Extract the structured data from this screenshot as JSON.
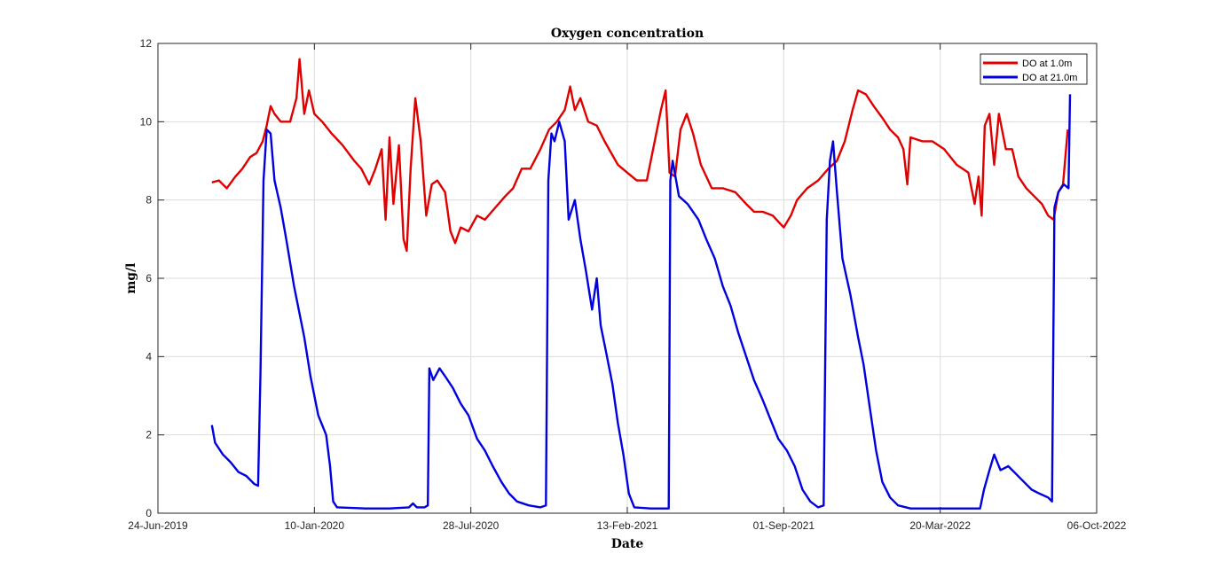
{
  "chart_data": {
    "type": "line",
    "title": "Oxygen concentration",
    "xlabel": "Date",
    "ylabel": "mg/l",
    "xlim": [
      "2019-06-24",
      "2022-10-06"
    ],
    "ylim": [
      0,
      12
    ],
    "x_ticks": [
      "24-Jun-2019",
      "10-Jan-2020",
      "28-Jul-2020",
      "13-Feb-2021",
      "01-Sep-2021",
      "20-Mar-2022",
      "06-Oct-2022"
    ],
    "y_ticks": [
      0,
      2,
      4,
      6,
      8,
      10,
      12
    ],
    "grid": true,
    "legend_position": "top-right",
    "series": [
      {
        "name": "DO at 1.0m",
        "color": "#e00000",
        "points": [
          [
            "2019-09-01",
            8.45
          ],
          [
            "2019-09-10",
            8.5
          ],
          [
            "2019-09-20",
            8.3
          ],
          [
            "2019-10-01",
            8.6
          ],
          [
            "2019-10-10",
            8.8
          ],
          [
            "2019-10-20",
            9.1
          ],
          [
            "2019-10-28",
            9.2
          ],
          [
            "2019-11-05",
            9.5
          ],
          [
            "2019-11-10",
            9.9
          ],
          [
            "2019-11-15",
            10.4
          ],
          [
            "2019-11-20",
            10.2
          ],
          [
            "2019-11-28",
            10.0
          ],
          [
            "2019-12-10",
            10.0
          ],
          [
            "2019-12-18",
            10.6
          ],
          [
            "2019-12-22",
            11.6
          ],
          [
            "2019-12-28",
            10.2
          ],
          [
            "2020-01-03",
            10.8
          ],
          [
            "2020-01-10",
            10.2
          ],
          [
            "2020-01-20",
            10.0
          ],
          [
            "2020-02-01",
            9.7
          ],
          [
            "2020-02-15",
            9.4
          ],
          [
            "2020-03-01",
            9.0
          ],
          [
            "2020-03-10",
            8.8
          ],
          [
            "2020-03-20",
            8.4
          ],
          [
            "2020-03-28",
            8.8
          ],
          [
            "2020-04-05",
            9.3
          ],
          [
            "2020-04-10",
            7.5
          ],
          [
            "2020-04-15",
            9.6
          ],
          [
            "2020-04-20",
            7.9
          ],
          [
            "2020-04-27",
            9.4
          ],
          [
            "2020-05-03",
            7.0
          ],
          [
            "2020-05-07",
            6.7
          ],
          [
            "2020-05-12",
            8.8
          ],
          [
            "2020-05-18",
            10.6
          ],
          [
            "2020-05-25",
            9.5
          ],
          [
            "2020-06-01",
            7.6
          ],
          [
            "2020-06-08",
            8.4
          ],
          [
            "2020-06-15",
            8.5
          ],
          [
            "2020-06-25",
            8.2
          ],
          [
            "2020-07-02",
            7.2
          ],
          [
            "2020-07-08",
            6.9
          ],
          [
            "2020-07-15",
            7.3
          ],
          [
            "2020-07-25",
            7.2
          ],
          [
            "2020-08-05",
            7.6
          ],
          [
            "2020-08-15",
            7.5
          ],
          [
            "2020-08-28",
            7.8
          ],
          [
            "2020-09-10",
            8.1
          ],
          [
            "2020-09-20",
            8.3
          ],
          [
            "2020-10-01",
            8.8
          ],
          [
            "2020-10-12",
            8.8
          ],
          [
            "2020-10-25",
            9.3
          ],
          [
            "2020-11-05",
            9.8
          ],
          [
            "2020-11-15",
            10.0
          ],
          [
            "2020-11-25",
            10.3
          ],
          [
            "2020-12-02",
            10.9
          ],
          [
            "2020-12-08",
            10.3
          ],
          [
            "2020-12-15",
            10.6
          ],
          [
            "2020-12-25",
            10.0
          ],
          [
            "2021-01-05",
            9.9
          ],
          [
            "2021-01-15",
            9.5
          ],
          [
            "2021-02-01",
            8.9
          ],
          [
            "2021-02-13",
            8.7
          ],
          [
            "2021-02-25",
            8.5
          ],
          [
            "2021-03-10",
            8.5
          ],
          [
            "2021-03-20",
            9.5
          ],
          [
            "2021-03-28",
            10.3
          ],
          [
            "2021-04-03",
            10.8
          ],
          [
            "2021-04-08",
            8.7
          ],
          [
            "2021-04-15",
            8.6
          ],
          [
            "2021-04-22",
            9.8
          ],
          [
            "2021-04-30",
            10.2
          ],
          [
            "2021-05-08",
            9.7
          ],
          [
            "2021-05-18",
            8.9
          ],
          [
            "2021-06-01",
            8.3
          ],
          [
            "2021-06-15",
            8.3
          ],
          [
            "2021-07-01",
            8.2
          ],
          [
            "2021-07-15",
            7.9
          ],
          [
            "2021-07-25",
            7.7
          ],
          [
            "2021-08-05",
            7.7
          ],
          [
            "2021-08-18",
            7.6
          ],
          [
            "2021-09-01",
            7.3
          ],
          [
            "2021-09-10",
            7.6
          ],
          [
            "2021-09-18",
            8.0
          ],
          [
            "2021-10-01",
            8.3
          ],
          [
            "2021-10-15",
            8.5
          ],
          [
            "2021-10-28",
            8.8
          ],
          [
            "2021-11-08",
            9.0
          ],
          [
            "2021-11-18",
            9.5
          ],
          [
            "2021-11-28",
            10.3
          ],
          [
            "2021-12-05",
            10.8
          ],
          [
            "2021-12-15",
            10.7
          ],
          [
            "2021-12-25",
            10.4
          ],
          [
            "2022-01-05",
            10.1
          ],
          [
            "2022-01-15",
            9.8
          ],
          [
            "2022-01-25",
            9.6
          ],
          [
            "2022-02-01",
            9.3
          ],
          [
            "2022-02-06",
            8.4
          ],
          [
            "2022-02-10",
            9.6
          ],
          [
            "2022-02-25",
            9.5
          ],
          [
            "2022-03-10",
            9.5
          ],
          [
            "2022-03-25",
            9.3
          ],
          [
            "2022-04-10",
            8.9
          ],
          [
            "2022-04-25",
            8.7
          ],
          [
            "2022-05-03",
            7.9
          ],
          [
            "2022-05-08",
            8.6
          ],
          [
            "2022-05-12",
            7.6
          ],
          [
            "2022-05-16",
            9.9
          ],
          [
            "2022-05-22",
            10.2
          ],
          [
            "2022-05-28",
            8.9
          ],
          [
            "2022-06-03",
            10.2
          ],
          [
            "2022-06-12",
            9.3
          ],
          [
            "2022-06-20",
            9.3
          ],
          [
            "2022-06-28",
            8.6
          ],
          [
            "2022-07-08",
            8.3
          ],
          [
            "2022-07-18",
            8.1
          ],
          [
            "2022-07-28",
            7.9
          ],
          [
            "2022-08-05",
            7.6
          ],
          [
            "2022-08-12",
            7.5
          ],
          [
            "2022-08-18",
            8.2
          ],
          [
            "2022-08-24",
            8.4
          ],
          [
            "2022-08-30",
            9.8
          ]
        ]
      },
      {
        "name": "DO at 21.0m",
        "color": "#0000e0",
        "points": [
          [
            "2019-09-01",
            2.25
          ],
          [
            "2019-09-05",
            1.8
          ],
          [
            "2019-09-15",
            1.5
          ],
          [
            "2019-09-25",
            1.3
          ],
          [
            "2019-10-05",
            1.05
          ],
          [
            "2019-10-15",
            0.95
          ],
          [
            "2019-10-25",
            0.75
          ],
          [
            "2019-10-30",
            0.7
          ],
          [
            "2019-11-02",
            3.5
          ],
          [
            "2019-11-06",
            8.5
          ],
          [
            "2019-11-10",
            9.8
          ],
          [
            "2019-11-15",
            9.7
          ],
          [
            "2019-11-20",
            8.5
          ],
          [
            "2019-11-28",
            7.8
          ],
          [
            "2019-12-05",
            7.0
          ],
          [
            "2019-12-15",
            5.8
          ],
          [
            "2019-12-28",
            4.5
          ],
          [
            "2020-01-05",
            3.5
          ],
          [
            "2020-01-15",
            2.5
          ],
          [
            "2020-01-25",
            2.0
          ],
          [
            "2020-01-30",
            1.2
          ],
          [
            "2020-02-03",
            0.3
          ],
          [
            "2020-02-08",
            0.15
          ],
          [
            "2020-03-15",
            0.12
          ],
          [
            "2020-04-15",
            0.12
          ],
          [
            "2020-05-10",
            0.15
          ],
          [
            "2020-05-15",
            0.25
          ],
          [
            "2020-05-20",
            0.15
          ],
          [
            "2020-05-30",
            0.15
          ],
          [
            "2020-06-03",
            0.2
          ],
          [
            "2020-06-05",
            3.7
          ],
          [
            "2020-06-10",
            3.4
          ],
          [
            "2020-06-18",
            3.7
          ],
          [
            "2020-06-25",
            3.5
          ],
          [
            "2020-07-05",
            3.2
          ],
          [
            "2020-07-15",
            2.8
          ],
          [
            "2020-07-25",
            2.5
          ],
          [
            "2020-08-05",
            1.9
          ],
          [
            "2020-08-15",
            1.6
          ],
          [
            "2020-08-25",
            1.2
          ],
          [
            "2020-09-05",
            0.8
          ],
          [
            "2020-09-15",
            0.5
          ],
          [
            "2020-09-25",
            0.3
          ],
          [
            "2020-10-10",
            0.2
          ],
          [
            "2020-10-25",
            0.15
          ],
          [
            "2020-11-01",
            0.2
          ],
          [
            "2020-11-04",
            8.5
          ],
          [
            "2020-11-08",
            9.7
          ],
          [
            "2020-11-12",
            9.5
          ],
          [
            "2020-11-18",
            10.0
          ],
          [
            "2020-11-25",
            9.5
          ],
          [
            "2020-11-30",
            7.5
          ],
          [
            "2020-12-08",
            8.0
          ],
          [
            "2020-12-15",
            7.0
          ],
          [
            "2020-12-22",
            6.2
          ],
          [
            "2020-12-30",
            5.2
          ],
          [
            "2021-01-05",
            6.0
          ],
          [
            "2021-01-10",
            4.8
          ],
          [
            "2021-01-18",
            4.0
          ],
          [
            "2021-01-25",
            3.3
          ],
          [
            "2021-02-01",
            2.3
          ],
          [
            "2021-02-08",
            1.5
          ],
          [
            "2021-02-15",
            0.5
          ],
          [
            "2021-02-22",
            0.15
          ],
          [
            "2021-03-15",
            0.12
          ],
          [
            "2021-04-07",
            0.12
          ],
          [
            "2021-04-09",
            8.5
          ],
          [
            "2021-04-12",
            9.0
          ],
          [
            "2021-04-20",
            8.1
          ],
          [
            "2021-05-01",
            7.9
          ],
          [
            "2021-05-15",
            7.5
          ],
          [
            "2021-05-25",
            7.0
          ],
          [
            "2021-06-05",
            6.5
          ],
          [
            "2021-06-15",
            5.8
          ],
          [
            "2021-06-25",
            5.3
          ],
          [
            "2021-07-05",
            4.6
          ],
          [
            "2021-07-15",
            4.0
          ],
          [
            "2021-07-25",
            3.4
          ],
          [
            "2021-08-05",
            2.9
          ],
          [
            "2021-08-15",
            2.4
          ],
          [
            "2021-08-25",
            1.9
          ],
          [
            "2021-09-05",
            1.6
          ],
          [
            "2021-09-15",
            1.2
          ],
          [
            "2021-09-25",
            0.6
          ],
          [
            "2021-10-05",
            0.3
          ],
          [
            "2021-10-15",
            0.15
          ],
          [
            "2021-10-22",
            0.2
          ],
          [
            "2021-10-26",
            7.5
          ],
          [
            "2021-10-30",
            9.0
          ],
          [
            "2021-11-03",
            9.5
          ],
          [
            "2021-11-08",
            8.2
          ],
          [
            "2021-11-15",
            6.5
          ],
          [
            "2021-11-25",
            5.6
          ],
          [
            "2021-12-05",
            4.5
          ],
          [
            "2021-12-12",
            3.8
          ],
          [
            "2021-12-20",
            2.7
          ],
          [
            "2021-12-28",
            1.6
          ],
          [
            "2022-01-05",
            0.8
          ],
          [
            "2022-01-15",
            0.4
          ],
          [
            "2022-01-25",
            0.2
          ],
          [
            "2022-02-10",
            0.12
          ],
          [
            "2022-03-15",
            0.12
          ],
          [
            "2022-04-15",
            0.12
          ],
          [
            "2022-05-10",
            0.12
          ],
          [
            "2022-05-15",
            0.6
          ],
          [
            "2022-05-22",
            1.1
          ],
          [
            "2022-05-28",
            1.5
          ],
          [
            "2022-06-05",
            1.1
          ],
          [
            "2022-06-15",
            1.2
          ],
          [
            "2022-06-25",
            1.0
          ],
          [
            "2022-07-05",
            0.8
          ],
          [
            "2022-07-15",
            0.6
          ],
          [
            "2022-07-25",
            0.5
          ],
          [
            "2022-08-05",
            0.4
          ],
          [
            "2022-08-10",
            0.3
          ],
          [
            "2022-08-13",
            7.8
          ],
          [
            "2022-08-18",
            8.2
          ],
          [
            "2022-08-25",
            8.4
          ],
          [
            "2022-08-31",
            8.3
          ],
          [
            "2022-09-02",
            10.7
          ]
        ]
      }
    ]
  }
}
